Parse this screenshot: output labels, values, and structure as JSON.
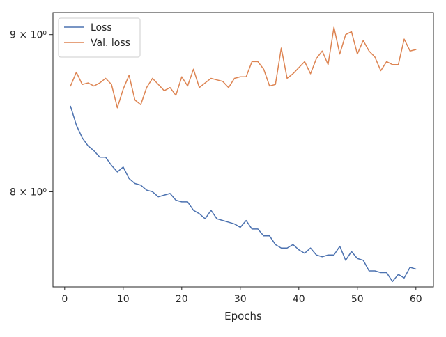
{
  "chart_data": {
    "type": "line",
    "title": "",
    "xlabel": "Epochs",
    "ylabel": "",
    "xlim": [
      -2,
      63
    ],
    "ylim": [
      7.45,
      9.15
    ],
    "yscale": "log",
    "grid": false,
    "legend_position": "top-left",
    "x_ticks": [
      0,
      10,
      20,
      30,
      40,
      50,
      60
    ],
    "x_tick_labels": [
      "0",
      "10",
      "20",
      "30",
      "40",
      "50",
      "60"
    ],
    "y_ticks": [
      8,
      9
    ],
    "y_tick_labels": [
      "8 × 10⁰",
      "9 × 10⁰"
    ],
    "x": [
      1,
      2,
      3,
      4,
      5,
      6,
      7,
      8,
      9,
      10,
      11,
      12,
      13,
      14,
      15,
      16,
      17,
      18,
      19,
      20,
      21,
      22,
      23,
      24,
      25,
      26,
      27,
      28,
      29,
      30,
      31,
      32,
      33,
      34,
      35,
      36,
      37,
      38,
      39,
      40,
      41,
      42,
      43,
      44,
      45,
      46,
      47,
      48,
      49,
      50,
      51,
      52,
      53,
      54,
      55,
      56,
      57,
      58,
      59,
      60
    ],
    "series": [
      {
        "name": "Loss",
        "color": "#4c72b0",
        "values": [
          8.53,
          8.41,
          8.33,
          8.28,
          8.25,
          8.21,
          8.21,
          8.16,
          8.12,
          8.15,
          8.08,
          8.05,
          8.04,
          8.01,
          8.0,
          7.97,
          7.98,
          7.99,
          7.95,
          7.94,
          7.94,
          7.89,
          7.87,
          7.84,
          7.89,
          7.84,
          7.83,
          7.82,
          7.81,
          7.79,
          7.83,
          7.78,
          7.78,
          7.74,
          7.74,
          7.69,
          7.67,
          7.67,
          7.69,
          7.66,
          7.64,
          7.67,
          7.63,
          7.62,
          7.63,
          7.63,
          7.68,
          7.6,
          7.65,
          7.61,
          7.6,
          7.54,
          7.54,
          7.53,
          7.53,
          7.48,
          7.52,
          7.5,
          7.56,
          7.55
        ]
      },
      {
        "name": "Val. loss",
        "color": "#dd8452",
        "values": [
          8.66,
          8.75,
          8.67,
          8.68,
          8.66,
          8.68,
          8.71,
          8.67,
          8.52,
          8.64,
          8.73,
          8.57,
          8.54,
          8.65,
          8.71,
          8.67,
          8.63,
          8.65,
          8.6,
          8.72,
          8.66,
          8.77,
          8.65,
          8.68,
          8.71,
          8.7,
          8.69,
          8.65,
          8.71,
          8.72,
          8.72,
          8.82,
          8.82,
          8.77,
          8.66,
          8.67,
          8.91,
          8.71,
          8.74,
          8.78,
          8.82,
          8.74,
          8.84,
          8.89,
          8.8,
          9.05,
          8.87,
          9.0,
          9.02,
          8.87,
          8.96,
          8.89,
          8.85,
          8.76,
          8.82,
          8.8,
          8.8,
          8.97,
          8.89,
          8.9
        ]
      }
    ]
  }
}
